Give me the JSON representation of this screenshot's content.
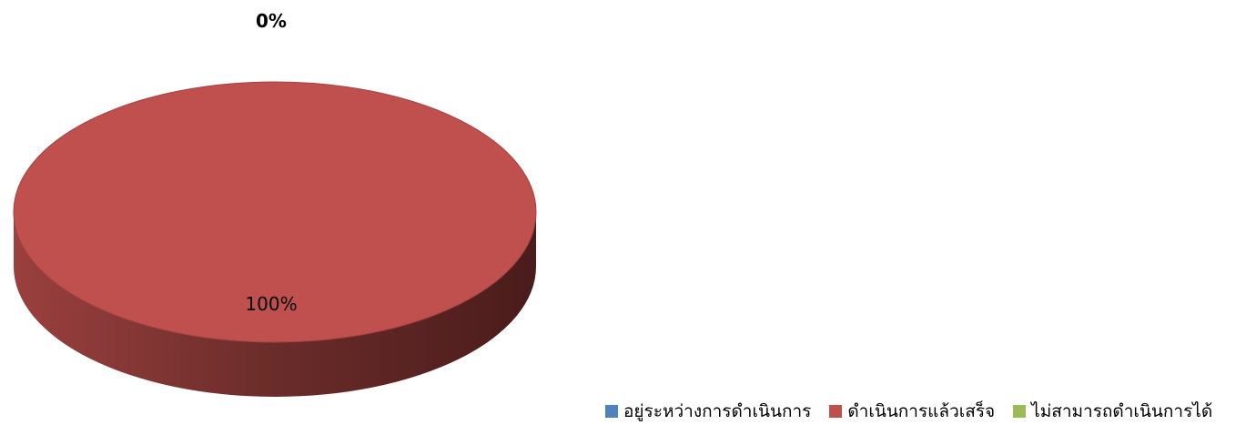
{
  "chart_data": {
    "type": "pie",
    "title": "",
    "style": "3d",
    "categories": [
      "อยู่ระหว่างการดำเนินการ",
      "ดำเนินการแล้วเสร็จ",
      "ไม่สามารถดำเนินการได้"
    ],
    "values": [
      0,
      100,
      0
    ],
    "data_labels": [
      "0%",
      "100%",
      ""
    ],
    "colors": [
      "#4f81bd",
      "#c0504d",
      "#9bbb59"
    ],
    "legend_placement": "bottom-right"
  }
}
